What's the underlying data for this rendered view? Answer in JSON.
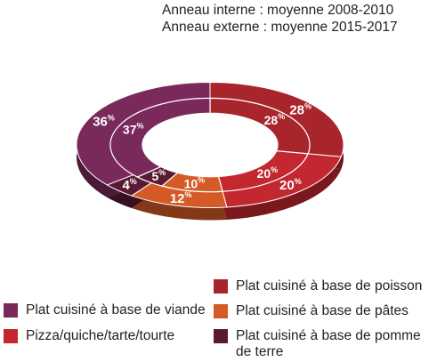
{
  "subtitle_inner": "Anneau interne : moyenne 2008-2010",
  "subtitle_outer": "Anneau externe : moyenne 2015-2017",
  "chart_data": {
    "type": "donut",
    "title": "",
    "rings": [
      {
        "name": "Anneau interne : moyenne 2008-2010",
        "position": "inner",
        "values": {
          "viande": 37,
          "poisson": 28,
          "pizza": 20,
          "pates": 10,
          "pomme_de_terre": 5
        }
      },
      {
        "name": "Anneau externe : moyenne 2015-2017",
        "position": "outer",
        "values": {
          "viande": 36,
          "poisson": 28,
          "pizza": 20,
          "pates": 12,
          "pomme_de_terre": 4
        }
      }
    ],
    "unit": "%",
    "categories": [
      {
        "key": "viande",
        "label": "Plat cuisiné à base de viande",
        "color": "#7a2a5a"
      },
      {
        "key": "poisson",
        "label": "Plat cuisiné à base de poisson",
        "color": "#a8262b"
      },
      {
        "key": "pizza",
        "label": "Pizza/quiche/tarte/tourte",
        "color": "#c3272f"
      },
      {
        "key": "pates",
        "label": "Plat cuisiné à base de pâtes",
        "color": "#d45b27"
      },
      {
        "key": "pomme_de_terre",
        "label": "Plat cuisiné à base de pomme de terre",
        "color": "#5a1a33"
      }
    ],
    "legend_position": "bottom"
  }
}
